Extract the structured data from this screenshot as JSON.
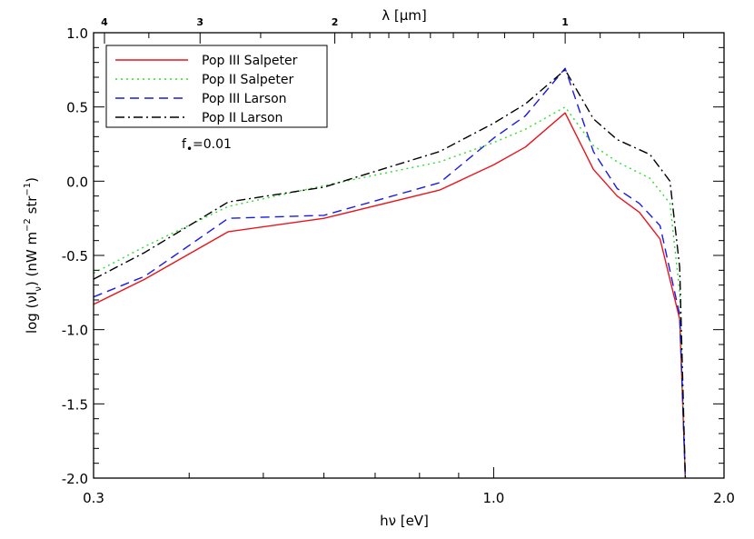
{
  "chart_data": {
    "type": "line",
    "title": "",
    "xlabel": "hν [eV]",
    "ylabel": "log (νI_ν) (nW m^-2 str^-1)",
    "top_xlabel": "λ [μm]",
    "xscale": "log",
    "xlim": [
      0.3,
      2.0
    ],
    "ylim": [
      -2.0,
      1.0
    ],
    "x_ticks": [
      {
        "value": 0.3,
        "label": "0.3"
      },
      {
        "value": 1.0,
        "label": "1.0"
      },
      {
        "value": 2.0,
        "label": "2.0"
      }
    ],
    "y_ticks": [
      {
        "value": 1.0,
        "label": "1.0"
      },
      {
        "value": 0.5,
        "label": "0.5"
      },
      {
        "value": 0.0,
        "label": "0.0"
      },
      {
        "value": -0.5,
        "label": "-0.5"
      },
      {
        "value": -1.0,
        "label": "-1.0"
      },
      {
        "value": -1.5,
        "label": "-1.5"
      },
      {
        "value": -2.0,
        "label": "-2.0"
      }
    ],
    "top_ticks": [
      {
        "lambda": 4,
        "label": "4"
      },
      {
        "lambda": 3,
        "label": "3"
      },
      {
        "lambda": 2,
        "label": "2"
      },
      {
        "lambda": 1,
        "label": "1"
      }
    ],
    "annotation": {
      "text": "f",
      "subscript": "•",
      "suffix": "=0.01"
    },
    "legend_placement": "top-left",
    "grid": false,
    "series": [
      {
        "name": "Pop III Salpeter",
        "color": "#e8141c",
        "dash": "solid",
        "points": [
          [
            0.3,
            -0.83
          ],
          [
            0.35,
            -0.66
          ],
          [
            0.45,
            -0.34
          ],
          [
            0.6,
            -0.25
          ],
          [
            0.85,
            -0.06
          ],
          [
            1.0,
            0.11
          ],
          [
            1.1,
            0.23
          ],
          [
            1.24,
            0.46
          ],
          [
            1.35,
            0.08
          ],
          [
            1.45,
            -0.1
          ],
          [
            1.55,
            -0.21
          ],
          [
            1.65,
            -0.39
          ],
          [
            1.75,
            -0.93
          ],
          [
            1.78,
            -2.0
          ]
        ]
      },
      {
        "name": "Pop II Salpeter",
        "color": "#2ae02a",
        "dash": "dotted",
        "points": [
          [
            0.3,
            -0.62
          ],
          [
            0.35,
            -0.44
          ],
          [
            0.45,
            -0.17
          ],
          [
            0.6,
            -0.03
          ],
          [
            0.85,
            0.13
          ],
          [
            1.0,
            0.26
          ],
          [
            1.1,
            0.35
          ],
          [
            1.24,
            0.5
          ],
          [
            1.35,
            0.24
          ],
          [
            1.45,
            0.13
          ],
          [
            1.6,
            0.02
          ],
          [
            1.7,
            -0.15
          ],
          [
            1.75,
            -0.75
          ],
          [
            1.78,
            -2.0
          ]
        ]
      },
      {
        "name": "Pop III Larson",
        "color": "#1a1ae6",
        "dash": "dashed",
        "points": [
          [
            0.3,
            -0.78
          ],
          [
            0.35,
            -0.64
          ],
          [
            0.45,
            -0.25
          ],
          [
            0.6,
            -0.23
          ],
          [
            0.85,
            -0.01
          ],
          [
            1.0,
            0.29
          ],
          [
            1.1,
            0.44
          ],
          [
            1.24,
            0.76
          ],
          [
            1.35,
            0.2
          ],
          [
            1.45,
            -0.05
          ],
          [
            1.55,
            -0.15
          ],
          [
            1.65,
            -0.3
          ],
          [
            1.75,
            -0.9
          ],
          [
            1.78,
            -2.0
          ]
        ]
      },
      {
        "name": "Pop II Larson",
        "color": "#000000",
        "dash": "dashdot",
        "points": [
          [
            0.3,
            -0.66
          ],
          [
            0.35,
            -0.48
          ],
          [
            0.45,
            -0.14
          ],
          [
            0.6,
            -0.04
          ],
          [
            0.85,
            0.2
          ],
          [
            1.0,
            0.39
          ],
          [
            1.1,
            0.52
          ],
          [
            1.24,
            0.75
          ],
          [
            1.35,
            0.42
          ],
          [
            1.45,
            0.28
          ],
          [
            1.6,
            0.18
          ],
          [
            1.7,
            0.0
          ],
          [
            1.75,
            -0.58
          ],
          [
            1.78,
            -2.0
          ]
        ]
      }
    ]
  }
}
